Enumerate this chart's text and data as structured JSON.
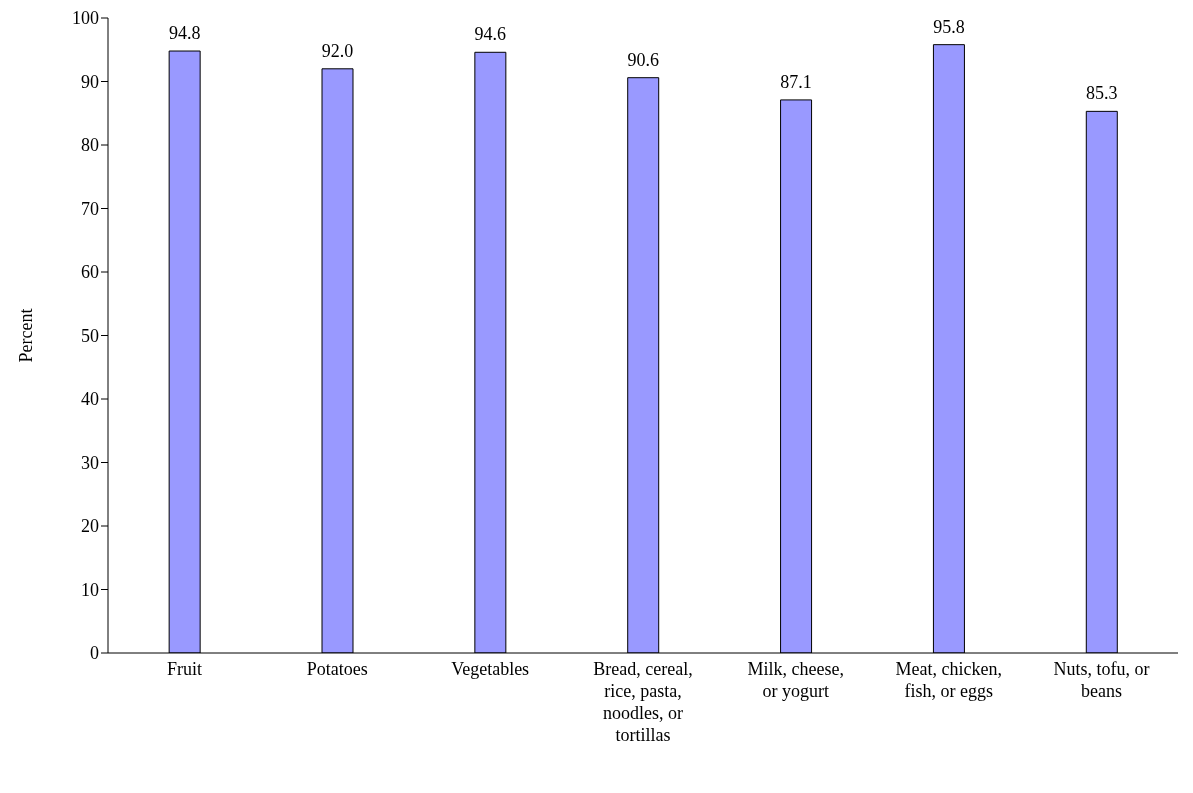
{
  "chart_data": {
    "type": "bar",
    "ylabel": "Percent",
    "categories": [
      "Fruit",
      "Potatoes",
      "Vegetables",
      "Bread, cereal, rice, pasta, noodles, or tortillas",
      "Milk, cheese, or yogurt",
      "Meat, chicken, fish, or eggs",
      "Nuts, tofu, or beans"
    ],
    "values": [
      94.8,
      92.0,
      94.6,
      90.6,
      87.1,
      95.8,
      85.3
    ],
    "value_labels": [
      "94.8",
      "92.0",
      "94.6",
      "90.6",
      "87.1",
      "95.8",
      "85.3"
    ],
    "color": "#9999ff",
    "ylim": [
      0,
      100
    ],
    "yticks": [
      0,
      10,
      20,
      30,
      40,
      50,
      60,
      70,
      80,
      90,
      100
    ],
    "grid": false,
    "legend": false
  }
}
